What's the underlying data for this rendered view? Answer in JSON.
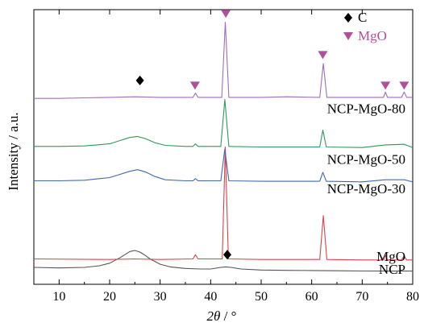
{
  "chart_data": {
    "type": "line",
    "xlabel_italic": "2θ",
    "xlabel_suffix": " / °",
    "ylabel": "Intensity / a.u.",
    "xlim": [
      5,
      80
    ],
    "x_ticks": [
      "10",
      "20",
      "30",
      "40",
      "50",
      "60",
      "70",
      "80"
    ],
    "y_ticks_shown": false,
    "legend": [
      {
        "symbol": "diamond",
        "label": "C",
        "color": "#000000"
      },
      {
        "symbol": "triangle-down",
        "label": "MgO",
        "color": "#b0509a"
      }
    ],
    "series": [
      {
        "name": "NCP",
        "color": "#555555",
        "x": [
          5,
          10,
          15,
          18,
          20,
          22,
          23,
          24,
          25,
          26,
          27,
          28,
          30,
          32,
          35,
          38,
          40,
          42,
          43,
          44,
          46,
          50,
          55,
          60,
          65,
          70,
          75,
          80
        ],
        "y": [
          16,
          15.5,
          16,
          17.5,
          20,
          25,
          28,
          31,
          32,
          30.5,
          27.5,
          24,
          19,
          16.5,
          15,
          14.5,
          14.5,
          16,
          16.5,
          16,
          14.5,
          13.5,
          13.2,
          13,
          12.8,
          12.6,
          12.5,
          12.5
        ]
      },
      {
        "name": "MgO",
        "color": "#d9434a",
        "x": [
          5,
          20,
          25,
          30,
          36.5,
          37,
          37.5,
          42.3,
          42.9,
          43.5,
          50,
          61.6,
          62.3,
          63,
          70,
          74.2,
          74.6,
          75,
          77.8,
          78.3,
          78.8,
          80
        ],
        "y": [
          24,
          23.5,
          24,
          23.5,
          24,
          28,
          24,
          24,
          130,
          24,
          23.5,
          23.5,
          65,
          23.5,
          23,
          23,
          27.5,
          23,
          23,
          27,
          23,
          23
        ]
      },
      {
        "name": "NCP-MgO-30",
        "color": "#4169b0",
        "x": [
          5,
          10,
          15,
          20,
          22,
          24,
          25.5,
          27,
          29,
          31,
          35,
          36.5,
          37,
          37.5,
          42,
          42.8,
          43.6,
          50,
          61.6,
          62.2,
          62.9,
          70,
          74.6,
          78.3,
          80
        ],
        "y": [
          98,
          98,
          98.5,
          101,
          104,
          107,
          108.5,
          106.5,
          102,
          99,
          98,
          98,
          100,
          98,
          98,
          128,
          98,
          97.5,
          97.5,
          106,
          97.5,
          97,
          99,
          99,
          97
        ]
      },
      {
        "name": "NCP-MgO-50",
        "color": "#2e9a5a",
        "x": [
          5,
          10,
          15,
          20,
          22,
          24,
          25.5,
          27,
          29,
          31,
          35,
          36.5,
          37,
          37.5,
          42,
          42.8,
          43.6,
          50,
          61.6,
          62.2,
          62.9,
          70,
          74.6,
          78.3,
          80
        ],
        "y": [
          130.5,
          130.5,
          131,
          133,
          136,
          139,
          140,
          138,
          134,
          131.5,
          130.5,
          130.5,
          133,
          130.5,
          130.5,
          175,
          130.5,
          130,
          130,
          146,
          130,
          129.5,
          132,
          132.5,
          129.5
        ]
      },
      {
        "name": "NCP-MgO-80",
        "color": "#a06cb8",
        "x": [
          5,
          10,
          15,
          20,
          25,
          30,
          35,
          36.5,
          37,
          37.5,
          42.2,
          42.9,
          43.6,
          50,
          55,
          61.6,
          62.3,
          63,
          70,
          74.2,
          74.6,
          75,
          77.8,
          78.3,
          78.8,
          80
        ],
        "y": [
          176,
          176,
          176.5,
          177,
          177.5,
          177,
          177,
          177,
          181,
          177,
          177,
          248,
          177,
          177,
          177.5,
          177,
          209,
          177,
          177,
          177,
          182,
          177,
          177,
          182,
          177,
          177
        ]
      }
    ],
    "label_values": {
      "NCP": 10,
      "MgO": 22,
      "NCP-MgO-30": 86,
      "NCP-MgO-50": 114,
      "NCP-MgO-80": 162
    },
    "markers": [
      {
        "symbol": "diamond",
        "x": 26,
        "y": 193
      },
      {
        "symbol": "diamond",
        "x": 43.3,
        "y": 28
      },
      {
        "symbol": "triangle-down",
        "x": 36.9,
        "y": 188
      },
      {
        "symbol": "triangle-down",
        "x": 43.0,
        "y": 256
      },
      {
        "symbol": "triangle-down",
        "x": 62.2,
        "y": 217
      },
      {
        "symbol": "triangle-down",
        "x": 74.6,
        "y": 188
      },
      {
        "symbol": "triangle-down",
        "x": 78.3,
        "y": 188
      }
    ]
  }
}
